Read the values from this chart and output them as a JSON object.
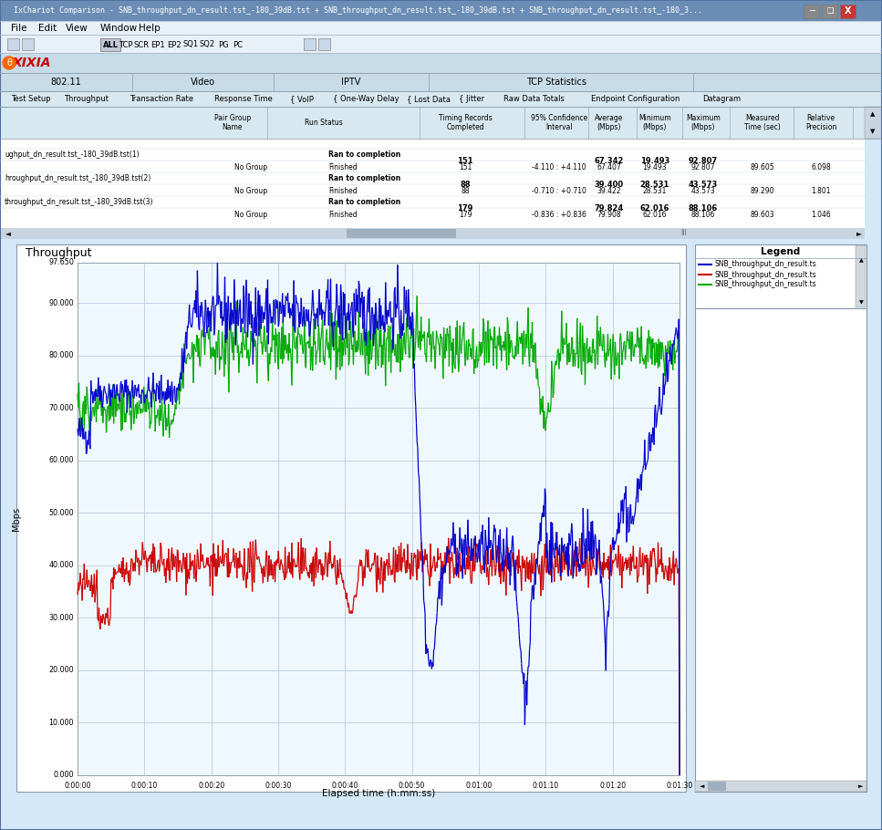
{
  "title": "IxChariot Comparison - SNB_throughput_dn_result.tst_-180_39dB.tst + SNB_throughput_dn_result.tst_-180_39dB.tst + SNB_throughput_dn_result.tst_-180_3...",
  "chart_title": "Throughput",
  "ylabel": "Mbps",
  "xlabel": "Elapsed time (h:mm:ss)",
  "ytick_vals": [
    0.0,
    10.0,
    20.0,
    30.0,
    40.0,
    50.0,
    60.0,
    70.0,
    80.0,
    90.0,
    97.65
  ],
  "xtick_labels": [
    "0:00:00",
    "0:00:10",
    "0:00:20",
    "0:00:30",
    "0:00:40",
    "0:00:50",
    "0:01:00",
    "0:01:10",
    "0:01:20",
    "0:01:30"
  ],
  "ylim_max": 97.65,
  "xlim_max": 90,
  "line_colors": [
    "#0000cc",
    "#cc0000",
    "#00aa00"
  ],
  "legend_labels": [
    "SNB_throughput_dn_result.ts",
    "SNB_throughput_dn_result.ts",
    "SNB_throughput_dn_result.ts"
  ],
  "bg_color": "#d4e8f7",
  "menu_bar_color": "#e8f0f8",
  "tab_color": "#c8dce8",
  "grid_color": "#b0c4d4",
  "title_bar_color": "#6b8db5"
}
